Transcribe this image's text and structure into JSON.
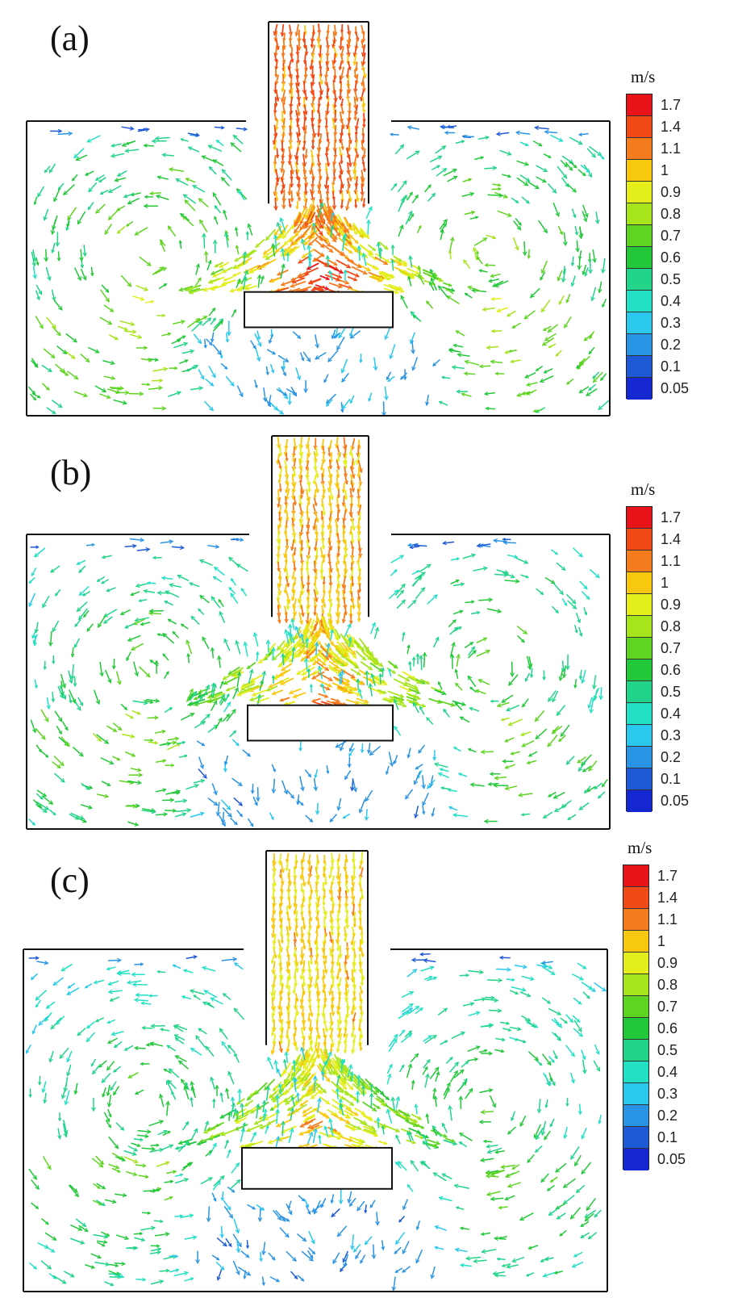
{
  "panels": [
    {
      "id": "a",
      "label": "(a)",
      "unit": "m/s",
      "intensity": 1.0
    },
    {
      "id": "b",
      "label": "(b)",
      "unit": "m/s",
      "intensity": 0.9
    },
    {
      "id": "c",
      "label": "(c)",
      "unit": "m/s",
      "intensity": 0.85
    }
  ],
  "colorbar": {
    "unit": "m/s",
    "ticks": [
      "1.7",
      "1.4",
      "1.1",
      "1",
      "0.9",
      "0.8",
      "0.7",
      "0.6",
      "0.5",
      "0.4",
      "0.3",
      "0.2",
      "0.1",
      "0.05"
    ],
    "colors": [
      "#e8141a",
      "#f24a16",
      "#f57c1c",
      "#f8c80f",
      "#e3ee1b",
      "#a6e41c",
      "#5fd421",
      "#22c83a",
      "#22d48a",
      "#22e0c4",
      "#2ac8ec",
      "#2a94e4",
      "#1f5ad6",
      "#1427d0"
    ]
  }
}
